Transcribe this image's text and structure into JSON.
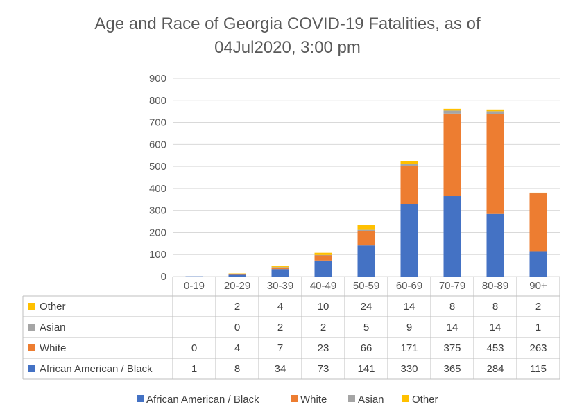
{
  "chart_data": {
    "type": "bar",
    "stacked": true,
    "title_line1": "Age and Race of Georgia COVID-19 Fatalities, as of",
    "title_line2": "04Jul2020, 3:00 pm",
    "categories": [
      "0-19",
      "20-29",
      "30-39",
      "40-49",
      "50-59",
      "60-69",
      "70-79",
      "80-89",
      "90+"
    ],
    "ylim": [
      0,
      900
    ],
    "yticks": [
      0,
      100,
      200,
      300,
      400,
      500,
      600,
      700,
      800,
      900
    ],
    "grid": true,
    "legend_position": "bottom",
    "data_table": true,
    "series": [
      {
        "name": "African American / Black",
        "color": "#4472C4",
        "values": [
          1,
          8,
          34,
          73,
          141,
          330,
          365,
          284,
          115
        ],
        "labels": [
          "1",
          "8",
          "34",
          "73",
          "141",
          "330",
          "365",
          "284",
          "115"
        ]
      },
      {
        "name": "White",
        "color": "#ED7D31",
        "values": [
          0,
          4,
          7,
          23,
          66,
          171,
          375,
          453,
          263
        ],
        "labels": [
          "0",
          "4",
          "7",
          "23",
          "66",
          "171",
          "375",
          "453",
          "263"
        ]
      },
      {
        "name": "Asian",
        "color": "#A5A5A5",
        "values": [
          0,
          0,
          2,
          2,
          5,
          9,
          14,
          14,
          1
        ],
        "labels": [
          "",
          "0",
          "2",
          "2",
          "5",
          "9",
          "14",
          "14",
          "1"
        ]
      },
      {
        "name": "Other",
        "color": "#FFC000",
        "values": [
          0,
          2,
          4,
          10,
          24,
          14,
          8,
          8,
          2
        ],
        "labels": [
          "",
          "2",
          "4",
          "10",
          "24",
          "14",
          "8",
          "8",
          "2"
        ]
      }
    ]
  }
}
